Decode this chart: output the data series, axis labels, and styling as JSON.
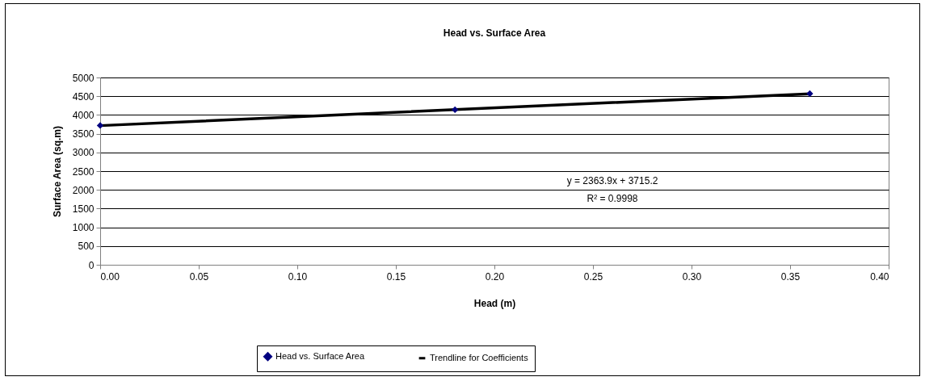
{
  "chart_data": {
    "type": "scatter",
    "title": "Head vs. Surface Area",
    "xlabel": "Head (m)",
    "ylabel": "Surface Area (sq.m)",
    "series": [
      {
        "name": "Head vs. Surface Area",
        "color": "#000080",
        "marker": "diamond",
        "x": [
          0,
          0.18,
          0.36
        ],
        "values": [
          3720,
          4140,
          4570
        ]
      },
      {
        "name": "Trendline for Coefficients",
        "type": "line",
        "color": "#000000",
        "x": [
          0,
          0.36
        ],
        "values": [
          3715,
          4566
        ]
      }
    ],
    "annotations": [
      "y = 2363.9x + 3715.2",
      "R² = 0.9998"
    ],
    "xlim": [
      0,
      0.4
    ],
    "xticks": [
      {
        "value": 0,
        "label": "0.00"
      },
      {
        "value": 0.05,
        "label": "0.05"
      },
      {
        "value": 0.1,
        "label": "0.10"
      },
      {
        "value": 0.15,
        "label": "0.15"
      },
      {
        "value": 0.2,
        "label": "0.20"
      },
      {
        "value": 0.25,
        "label": "0.25"
      },
      {
        "value": 0.3,
        "label": "0.30"
      },
      {
        "value": 0.35,
        "label": "0.35"
      },
      {
        "value": 0.4,
        "label": "0.40"
      }
    ],
    "ylim": [
      0,
      5000
    ],
    "yticks": [
      0,
      500,
      1000,
      1500,
      2000,
      2500,
      3000,
      3500,
      4000,
      4500,
      5000
    ],
    "grid": "y",
    "legend": "bottom"
  }
}
